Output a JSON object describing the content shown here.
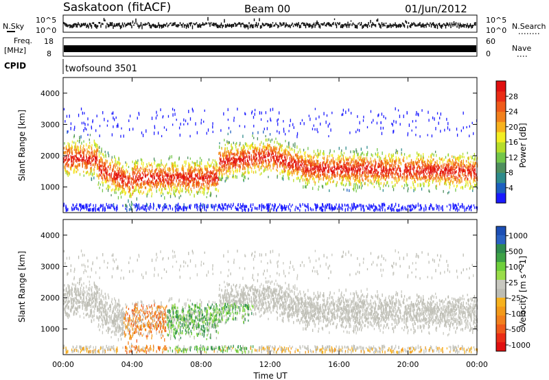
{
  "header": {
    "station": "Saskatoon (fitACF)",
    "beam": "Beam 00",
    "date": "01/Jun/2012"
  },
  "noise_strip": {
    "left_label": "N.Sky",
    "left_tick_top": "10^5",
    "left_tick_bottom": "10^0",
    "right_tick_top": "10^5",
    "right_tick_bottom": "10^0",
    "right_label": "N.Search"
  },
  "freq_strip": {
    "left_label_line1": "Freq.",
    "left_label_line2": "[MHz]",
    "left_tick_top": "18",
    "left_tick_bottom": "8",
    "right_tick_top": "60",
    "right_tick_bottom": "0",
    "right_label": "Nave"
  },
  "cpid_strip": {
    "label": "CPID",
    "program": "twofsound 3501"
  },
  "chart_data": [
    {
      "type": "heatmap",
      "title": "",
      "ylabel": "Slant Range [km]",
      "ylim": [
        180,
        4500
      ],
      "yticks": [
        "1000",
        "2000",
        "3000",
        "4000"
      ],
      "colorbar": {
        "label": "Power [dB]",
        "ticks": [
          "4",
          "8",
          "12",
          "16",
          "20",
          "24",
          "28"
        ],
        "colors": [
          "#1a1aff",
          "#1c5fbf",
          "#2e8b8b",
          "#4e8f5e",
          "#73c64a",
          "#b6dd2a",
          "#f3ee23",
          "#f7b21e",
          "#f2801d",
          "#ef5a1a",
          "#ea2d16",
          "#e01010"
        ]
      }
    },
    {
      "type": "heatmap",
      "title": "",
      "xlabel": "Time UT",
      "ylabel": "Slant Range [km]",
      "ylim": [
        180,
        4500
      ],
      "yticks": [
        "1000",
        "2000",
        "3000",
        "4000"
      ],
      "xticks": [
        "00:00",
        "04:00",
        "08:00",
        "12:00",
        "16:00",
        "20:00",
        "00:00"
      ],
      "colorbar": {
        "label": "Velocity [m s^-1]",
        "ticks": [
          "1000",
          "500",
          "100",
          "25",
          "-25",
          "-100",
          "-500",
          "-1000"
        ],
        "colors": [
          "#1c4fb5",
          "#2a62c2",
          "#2f8b50",
          "#3ea246",
          "#6fd03c",
          "#9add4a",
          "#c8c8c0",
          "#bdbdb4",
          "#f7b21e",
          "#f39a1a",
          "#f2801d",
          "#ef5a1a",
          "#ea2d16",
          "#e01010"
        ]
      }
    }
  ]
}
